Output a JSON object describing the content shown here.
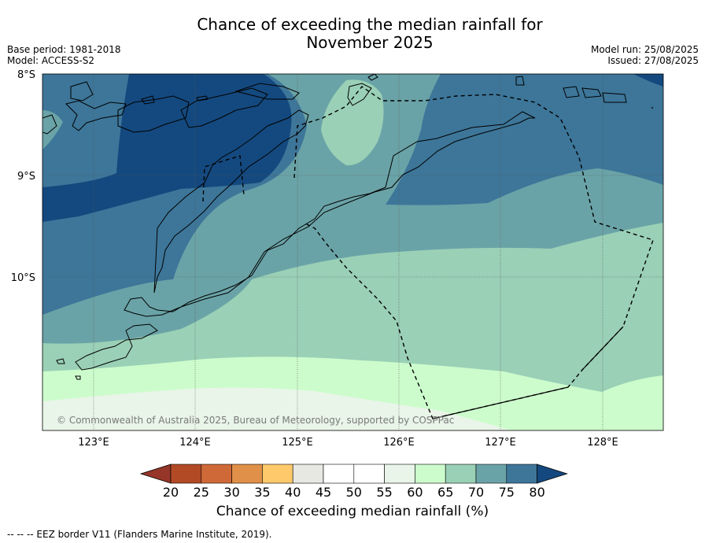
{
  "header": {
    "title_line1": "Chance of exceeding the median rainfall for",
    "title_line2": "November 2025",
    "base_period": "Base period: 1981-2018",
    "model": "Model: ACCESS-S2",
    "model_run": "Model run: 25/08/2025",
    "issued": "Issued: 27/08/2025"
  },
  "map": {
    "lat_labels": [
      "8°S",
      "9°S",
      "10°S"
    ],
    "lon_labels": [
      "123°E",
      "124°E",
      "125°E",
      "126°E",
      "127°E",
      "128°E"
    ],
    "copyright": "© Commonwealth of Australia 2025, Bureau of Meteorology, supported by COSPPac"
  },
  "colorbar": {
    "ticks": [
      "20",
      "25",
      "30",
      "35",
      "40",
      "45",
      "50",
      "55",
      "60",
      "65",
      "70",
      "75",
      "80"
    ],
    "colors": [
      "#b24a26",
      "#cf6a38",
      "#e09048",
      "#fdc96b",
      "#e8e8e3",
      "#ffffff",
      "#ffffff",
      "#e8f5e8",
      "#ccfccc",
      "#9ad0b6",
      "#6aa3a7",
      "#3d7699"
    ],
    "under_color": "#963628",
    "over_color": "#14497f",
    "label": "Chance of exceeding median rainfall (%)"
  },
  "footer": {
    "legend": "--  --  -- EEZ border V11 (Flanders Marine Institute, 2019)."
  },
  "chart_data": {
    "type": "heatmap",
    "title": "Chance of exceeding the median rainfall for November 2025",
    "units": "%",
    "x_range_deg_E": [
      122.5,
      128.6
    ],
    "y_range_deg_S": [
      8.0,
      11.5
    ],
    "levels": [
      20,
      25,
      30,
      35,
      40,
      45,
      50,
      55,
      60,
      65,
      70,
      75,
      80
    ],
    "regions": [
      {
        "name": "north-west core",
        "range": ">80"
      },
      {
        "name": "north band",
        "range": "75-80"
      },
      {
        "name": "central band",
        "range": "70-75"
      },
      {
        "name": "southern band",
        "range": "65-70"
      },
      {
        "name": "south band",
        "range": "60-65"
      },
      {
        "name": "far south band",
        "range": "55-60"
      }
    ]
  }
}
